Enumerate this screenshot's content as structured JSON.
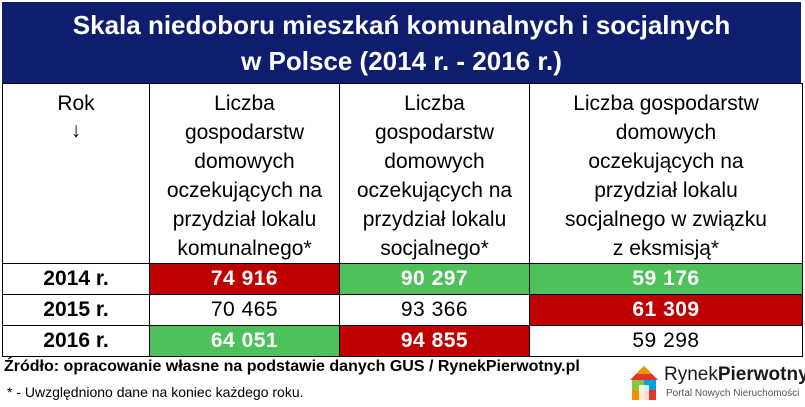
{
  "title": {
    "line1": "Skala niedoboru mieszkań komunalnych i socjalnych",
    "line2": "w Polsce (2014 r. - 2016 r.)"
  },
  "table": {
    "rok_header": "Rok",
    "rok_arrow": "↓",
    "col1_header": [
      "Liczba",
      "gospodarstw",
      "domowych",
      "oczekujących na",
      "przydział lokalu",
      "komunalnego*"
    ],
    "col2_header": [
      "Liczba",
      "gospodarstw",
      "domowych",
      "oczekujących na",
      "przydział lokalu",
      "socjalnego*"
    ],
    "col3_header": [
      "Liczba gospodarstw",
      "domowych",
      "oczekujących na",
      "przydział lokalu",
      "socjalnego w związku",
      "z eksmisją*"
    ],
    "rows": [
      {
        "year": "2014 r.",
        "v1": "74 916",
        "v2": "90 297",
        "v3": "59 176"
      },
      {
        "year": "2015 r.",
        "v1": "70 465",
        "v2": "93 366",
        "v3": "61 309"
      },
      {
        "year": "2016 r.",
        "v1": "64 051",
        "v2": "94 855",
        "v3": "59 298"
      }
    ],
    "highlight_colors": {
      "max": "#c00000",
      "min": "#4fc15b"
    }
  },
  "source": "Źródło: opracowanie własne na podstawie danych GUS / RynekPierwotny.pl",
  "note": "* - Uwzględniono dane na koniec każdego roku.",
  "logo": {
    "name_part1": "Rynek",
    "name_part2": "Pierwotny",
    "tagline": "Portal Nowych Nieruchomości",
    "icon": "house-logo-icon"
  }
}
